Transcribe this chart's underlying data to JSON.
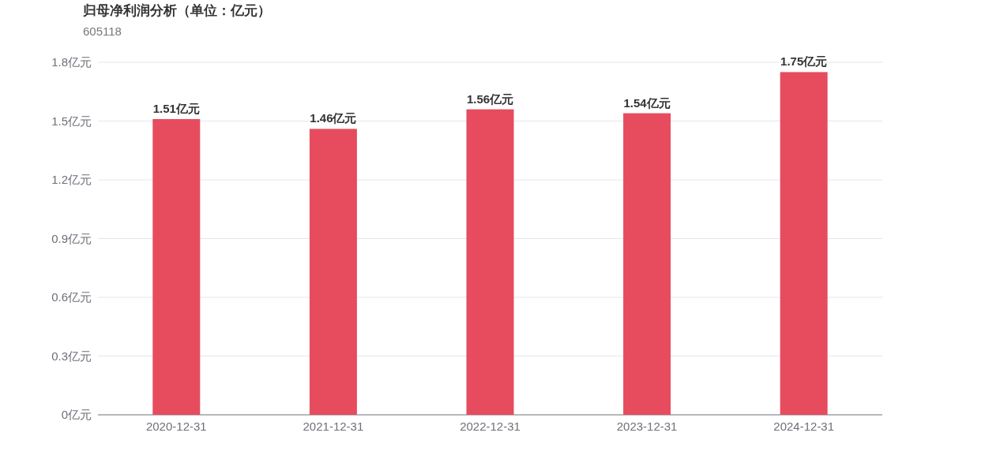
{
  "chart_data": {
    "type": "bar",
    "title": "归母净利润分析（单位：亿元）",
    "subtitle": "605118",
    "categories": [
      "2020-12-31",
      "2021-12-31",
      "2022-12-31",
      "2023-12-31",
      "2024-12-31"
    ],
    "values": [
      1.51,
      1.46,
      1.56,
      1.54,
      1.75
    ],
    "value_labels": [
      "1.51亿元",
      "1.46亿元",
      "1.56亿元",
      "1.54亿元",
      "1.75亿元"
    ],
    "color": "#e64c5e",
    "ylim": [
      0,
      1.8
    ],
    "yticks": [
      {
        "value": 0,
        "label": "0亿元"
      },
      {
        "value": 0.3,
        "label": "0.3亿元"
      },
      {
        "value": 0.6,
        "label": "0.6亿元"
      },
      {
        "value": 0.9,
        "label": "0.9亿元"
      },
      {
        "value": 1.2,
        "label": "1.2亿元"
      },
      {
        "value": 1.5,
        "label": "1.5亿元"
      },
      {
        "value": 1.8,
        "label": "1.8亿元"
      }
    ],
    "grid": "y"
  }
}
